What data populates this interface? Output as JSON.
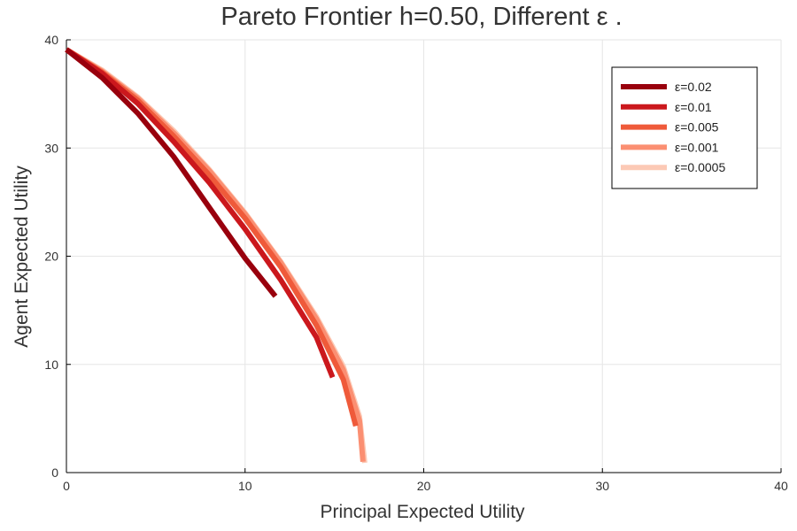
{
  "chart_data": {
    "type": "line",
    "title": "Pareto Frontier h=0.50, Different ε .",
    "xlabel": "Principal Expected Utility",
    "ylabel": "Agent Expected Utility",
    "xlim": [
      0,
      40
    ],
    "ylim": [
      0,
      40
    ],
    "xticks": [
      "0",
      "10",
      "20",
      "30",
      "40"
    ],
    "yticks": [
      "0",
      "10",
      "20",
      "30",
      "40"
    ],
    "grid": true,
    "legend_position": "top-right",
    "series": [
      {
        "name": "ε=0.02",
        "color": "#99000d",
        "x": [
          0,
          2,
          4,
          6,
          8,
          10,
          11.7
        ],
        "y": [
          39.1,
          36.5,
          33.2,
          29.2,
          24.5,
          19.8,
          16.3
        ]
      },
      {
        "name": "ε=0.01",
        "color": "#cb181d",
        "x": [
          0,
          2,
          4,
          6,
          8,
          10,
          12,
          14,
          14.9
        ],
        "y": [
          39.1,
          36.9,
          34.1,
          30.6,
          26.8,
          22.5,
          17.8,
          12.5,
          8.8
        ]
      },
      {
        "name": "ε=0.005",
        "color": "#ef5a3a",
        "x": [
          0,
          2,
          4,
          6,
          8,
          10,
          12,
          14,
          15.5,
          16.2
        ],
        "y": [
          39.1,
          37.0,
          34.4,
          31.1,
          27.5,
          23.5,
          19.0,
          13.6,
          8.6,
          4.3
        ]
      },
      {
        "name": "ε=0.001",
        "color": "#fb8f72",
        "x": [
          0,
          2,
          4,
          6,
          8,
          10,
          12,
          14,
          15.5,
          16.4,
          16.6
        ],
        "y": [
          39.1,
          37.1,
          34.6,
          31.4,
          27.9,
          23.9,
          19.4,
          14.2,
          9.5,
          4.8,
          1.0
        ]
      },
      {
        "name": "ε=0.0005",
        "color": "#fcc9b5",
        "x": [
          0,
          2,
          4,
          6,
          8,
          10,
          12,
          14,
          15.5,
          16.4,
          16.7
        ],
        "y": [
          39.1,
          37.2,
          34.7,
          31.6,
          28.0,
          24.0,
          19.5,
          14.4,
          9.8,
          5.2,
          0.9
        ]
      }
    ]
  }
}
